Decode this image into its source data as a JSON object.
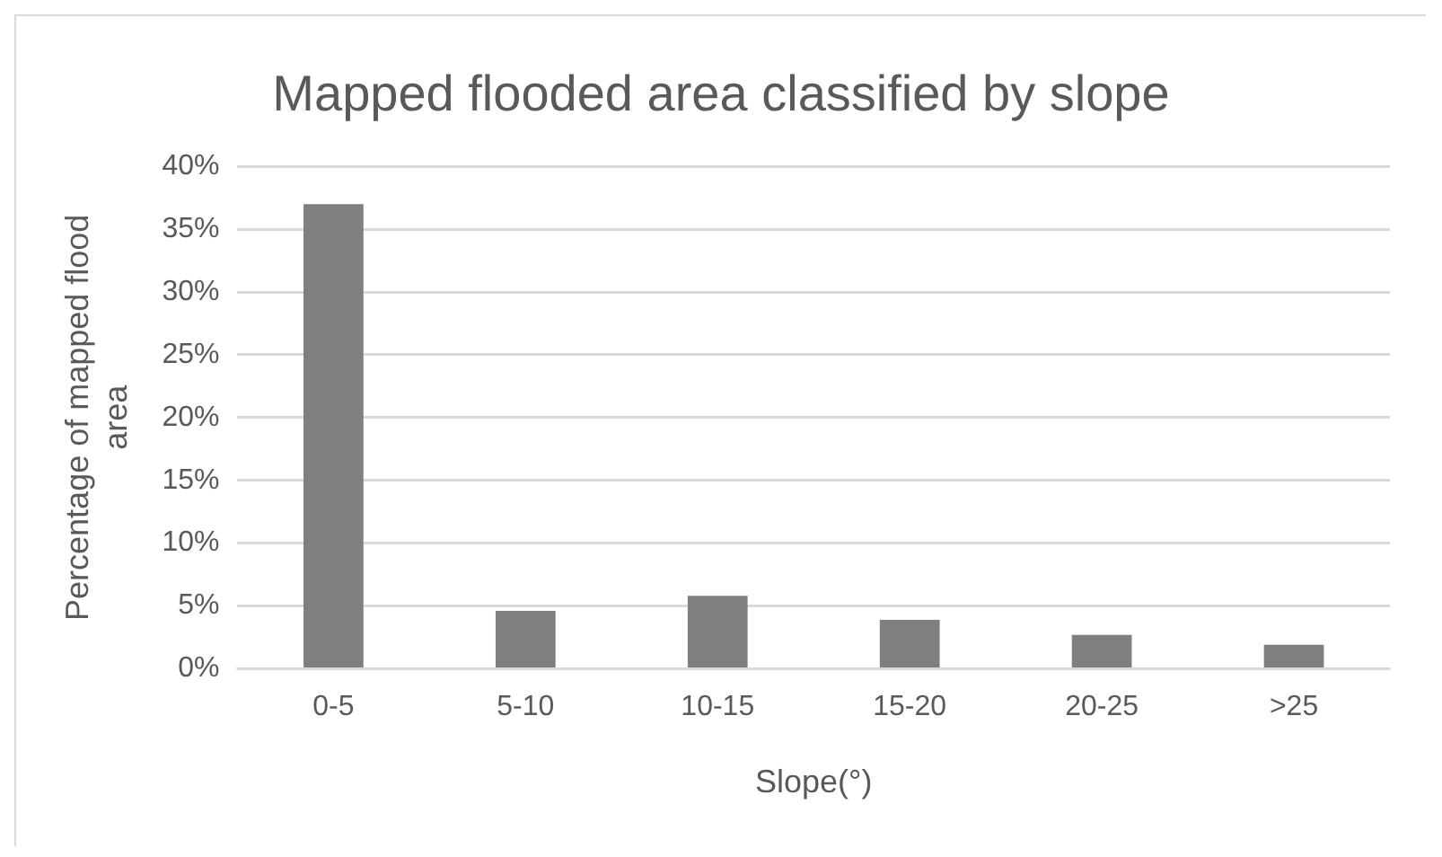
{
  "chart_data": {
    "type": "bar",
    "title": "Mapped flooded area classified by slope",
    "xlabel": "Slope(°)",
    "ylabel": "Percentage of mapped flood area",
    "categories": [
      "0-5",
      "5-10",
      "10-15",
      "15-20",
      "20-25",
      ">25"
    ],
    "values": [
      37,
      4.6,
      5.8,
      3.9,
      2.7,
      1.9
    ],
    "color": "#7f7f7f",
    "ylim": [
      0,
      40
    ],
    "yticks": [
      {
        "value": 0,
        "label": "0%"
      },
      {
        "value": 5,
        "label": "5%"
      },
      {
        "value": 10,
        "label": "10%"
      },
      {
        "value": 15,
        "label": "15%"
      },
      {
        "value": 20,
        "label": "20%"
      },
      {
        "value": 25,
        "label": "25%"
      },
      {
        "value": 30,
        "label": "30%"
      },
      {
        "value": 35,
        "label": "35%"
      },
      {
        "value": 40,
        "label": "40%"
      }
    ],
    "grid": "y",
    "legend": false
  }
}
